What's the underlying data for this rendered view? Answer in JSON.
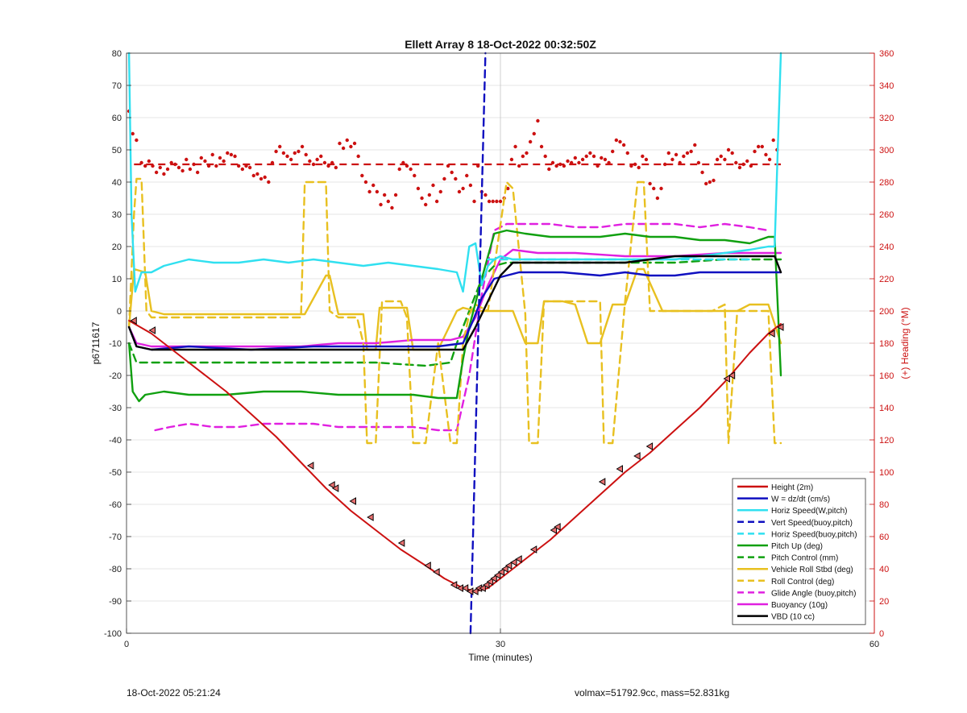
{
  "chart_data": {
    "type": "line",
    "title": "Ellett Array 8 18-Oct-2022 00:32:50Z",
    "xlabel": "Time (minutes)",
    "ylabel": "p6711617",
    "y2label": "(+) Heading (°M)",
    "xlim": [
      0,
      60
    ],
    "ylim": [
      -100,
      80
    ],
    "y2lim": [
      0,
      360
    ],
    "xticks": [
      "0",
      "30",
      "60"
    ],
    "yticks": [
      "-100",
      "-90",
      "-80",
      "-70",
      "-60",
      "-50",
      "-40",
      "-30",
      "-20",
      "-10",
      "0",
      "10",
      "20",
      "30",
      "40",
      "50",
      "60",
      "70",
      "80"
    ],
    "y2ticks": [
      "0",
      "20",
      "40",
      "60",
      "80",
      "100",
      "120",
      "140",
      "160",
      "180",
      "200",
      "220",
      "240",
      "260",
      "280",
      "300",
      "320",
      "340",
      "360"
    ],
    "grid": true,
    "legend_position": "bottom-right",
    "colors": {
      "red": "#cc1111",
      "blue": "#1010c0",
      "cyan": "#30e0f0",
      "green": "#10a010",
      "yellow": "#e8c020",
      "magenta": "#e020e0",
      "black": "#000000",
      "heading_axis": "#cc1111"
    },
    "series": [
      {
        "name": "Height (2m)",
        "color": "#cc1111",
        "style": "solid",
        "x": [
          0.2,
          2,
          5,
          8,
          10,
          12,
          14,
          16,
          18,
          20,
          22,
          24,
          25.5,
          27,
          28,
          29,
          30,
          31,
          32,
          34,
          36,
          38,
          40,
          42,
          44,
          46,
          48,
          50,
          51.5,
          52.5
        ],
        "y": [
          -3,
          -7,
          -16,
          -25,
          -32,
          -39,
          -47,
          -55,
          -62,
          -68,
          -74,
          -79,
          -83,
          -86,
          -87,
          -86,
          -83,
          -80,
          -77,
          -71,
          -64,
          -57,
          -50,
          -44,
          -37,
          -30,
          -22,
          -13,
          -7,
          -4
        ]
      },
      {
        "name": "W = dz/dt (cm/s)",
        "color": "#1010c0",
        "style": "solid",
        "x": [
          0.2,
          0.8,
          2,
          5,
          10,
          15,
          20,
          25,
          27,
          27.8,
          28.5,
          29.5,
          30.5,
          31.5,
          33,
          35,
          38,
          40,
          42,
          44,
          46,
          48,
          50,
          52,
          52.5
        ],
        "y": [
          -5,
          -11,
          -12,
          -11,
          -12,
          -11,
          -11,
          -11,
          -10,
          -3,
          4,
          10,
          11,
          12,
          12,
          12,
          11,
          12,
          11,
          11,
          12,
          12,
          12,
          12,
          12
        ]
      },
      {
        "name": "Horiz Speed(W,pitch)",
        "color": "#30e0f0",
        "style": "solid",
        "x": [
          0.2,
          0.4,
          0.7,
          1.2,
          2,
          3,
          5,
          7,
          9,
          11,
          13,
          15,
          17,
          19,
          21,
          23,
          25,
          26.5,
          27,
          27.5,
          28,
          28.5,
          29,
          29.5,
          30,
          31,
          33,
          35,
          38,
          40,
          42,
          44,
          46,
          48,
          50,
          51.5,
          52,
          52.5
        ],
        "y": [
          80,
          30,
          6,
          12,
          12,
          14,
          16,
          15,
          15,
          16,
          15,
          16,
          15,
          14,
          15,
          14,
          13,
          12,
          6,
          20,
          21,
          8,
          14,
          16,
          17,
          16,
          16,
          16,
          16,
          16,
          16,
          16,
          17,
          18,
          19,
          20,
          20,
          80
        ]
      },
      {
        "name": "Vert Speed(buoy,pitch)",
        "color": "#1010c0",
        "style": "dashed",
        "x": [
          27.6,
          28.8
        ],
        "y": [
          -100,
          80
        ]
      },
      {
        "name": "Horiz Speed(buoy,pitch)",
        "color": "#30e0f0",
        "style": "dashed",
        "x": [
          29,
          31,
          35,
          40,
          45,
          50
        ],
        "y": [
          16,
          16,
          16,
          16,
          16,
          16
        ]
      },
      {
        "name": "Pitch Up (deg)",
        "color": "#10a010",
        "style": "solid",
        "x": [
          0.2,
          0.5,
          1,
          1.5,
          3,
          5,
          8,
          11,
          14,
          17,
          20,
          23,
          25,
          26.5,
          27,
          27.5,
          28.5,
          29.5,
          30.5,
          32,
          34,
          36,
          38,
          40,
          42,
          44,
          46,
          48,
          50,
          51.5,
          52,
          52.5
        ],
        "y": [
          -10,
          -25,
          -28,
          -26,
          -25,
          -26,
          -26,
          -25,
          -25,
          -26,
          -26,
          -26,
          -27,
          -27,
          -15,
          -5,
          10,
          24,
          25,
          24,
          23,
          23,
          23,
          24,
          23,
          23,
          22,
          22,
          21,
          23,
          23,
          -20
        ]
      },
      {
        "name": "Pitch Control (mm)",
        "color": "#10a010",
        "style": "dashed",
        "x": [
          0.2,
          0.8,
          5,
          10,
          15,
          20,
          24,
          26,
          26.5,
          27,
          27.5,
          28.5,
          29.5,
          30.5,
          32,
          36,
          40,
          44,
          48,
          52.5
        ],
        "y": [
          -10,
          -16,
          -16,
          -16,
          -16,
          -16,
          -17,
          -16,
          -10,
          -5,
          0,
          10,
          14,
          15,
          15,
          15,
          15,
          15,
          16,
          16
        ]
      },
      {
        "name": "Vehicle Roll Stbd (deg)",
        "color": "#e8c020",
        "style": "solid",
        "x": [
          0.2,
          0.6,
          1.5,
          2,
          3,
          5,
          8,
          10,
          12,
          14,
          14.3,
          16,
          16.3,
          17,
          17.5,
          18.5,
          19,
          19.3,
          20,
          20.3,
          21,
          22,
          22.5,
          23,
          23.3,
          24,
          25,
          26.5,
          27,
          28,
          29,
          30.5,
          31,
          32,
          33,
          33.5,
          35,
          36,
          37,
          37.5,
          38,
          39,
          40,
          41,
          41.5,
          43,
          47,
          48,
          49,
          50,
          51.5,
          52.5
        ],
        "y": [
          -5,
          13,
          12,
          0,
          -1,
          -1,
          -1,
          -1,
          -1,
          -1,
          -1,
          11,
          11,
          -1,
          -1,
          -1,
          -1,
          -12,
          -12,
          1,
          1,
          1,
          1,
          -12,
          -12,
          -12,
          -12,
          0,
          1,
          0,
          0,
          0,
          0,
          -10,
          -10,
          3,
          3,
          2,
          -10,
          -10,
          -10,
          2,
          2,
          13,
          13,
          0,
          0,
          0,
          0,
          2,
          2,
          -10
        ]
      },
      {
        "name": "Roll Control (deg)",
        "color": "#e8c020",
        "style": "dashed",
        "x": [
          0.2,
          0.6,
          0.8,
          1.2,
          1.6,
          2,
          5,
          10,
          14,
          14.3,
          16,
          16.3,
          17,
          18.5,
          19,
          19.3,
          20,
          20.5,
          22,
          22.5,
          23,
          24,
          25,
          26,
          26.5,
          27,
          27.5,
          28,
          29,
          30.5,
          31,
          32,
          32.3,
          33,
          33.5,
          35,
          38,
          38.3,
          39,
          40,
          41,
          41.5,
          42,
          44,
          46,
          47,
          48,
          48.3,
          49,
          50,
          51.5,
          52,
          52.5
        ],
        "y": [
          -5,
          30,
          41,
          41,
          0,
          -2,
          -2,
          -2,
          -2,
          40,
          40,
          0,
          -2,
          -2,
          -10,
          -41,
          -41,
          3,
          3,
          -2,
          -41,
          -41,
          -10,
          -41,
          -41,
          -10,
          -1,
          2,
          0,
          40,
          38,
          -1,
          -41,
          -41,
          3,
          3,
          3,
          -41,
          -41,
          3,
          40,
          40,
          0,
          0,
          0,
          0,
          2,
          -41,
          0,
          0,
          0,
          -41,
          -41
        ]
      },
      {
        "name": "Glide Angle (buoy,pitch)",
        "color": "#e020e0",
        "style": "dashed",
        "x": [
          2.3,
          3.5,
          5,
          7,
          9,
          11,
          13,
          15,
          17,
          19,
          21,
          23,
          25,
          26.5,
          27.5,
          28.5,
          29.5,
          30.5,
          32,
          34,
          36,
          38,
          40,
          42,
          44,
          46,
          48,
          50,
          51.5
        ],
        "y": [
          -37,
          -36,
          -35,
          -36,
          -36,
          -35,
          -35,
          -35,
          -36,
          -36,
          -36,
          -36,
          -37,
          -37,
          -20,
          5,
          25,
          27,
          27,
          27,
          26,
          26,
          27,
          27,
          27,
          26,
          27,
          26,
          25
        ]
      },
      {
        "name": "Buoyancy (10g)",
        "color": "#e020e0",
        "style": "solid",
        "x": [
          0.2,
          0.8,
          2,
          5,
          8,
          11,
          14,
          17,
          20,
          23,
          26,
          27,
          28,
          29,
          30,
          31,
          33,
          36,
          40,
          44,
          48,
          50,
          52.5
        ],
        "y": [
          -5,
          -10,
          -11,
          -11,
          -11,
          -11,
          -11,
          -10,
          -10,
          -9,
          -9,
          -8,
          -2,
          8,
          16,
          19,
          18,
          18,
          17,
          17,
          18,
          18,
          18
        ]
      },
      {
        "name": "VBD (10 cc)",
        "color": "#000000",
        "style": "solid",
        "x": [
          0.2,
          0.8,
          2,
          5,
          10,
          15,
          20,
          25,
          27,
          28,
          29,
          30,
          31,
          33,
          35,
          38,
          40,
          42,
          44,
          46,
          48,
          50,
          52,
          52.5
        ],
        "y": [
          -5,
          -11,
          -12,
          -12,
          -12,
          -12,
          -12,
          -12,
          -12,
          -5,
          3,
          11,
          15,
          15,
          15,
          15,
          15,
          16,
          17,
          17,
          17,
          17,
          17,
          12
        ]
      }
    ],
    "heading_mean": {
      "color": "#cc1111",
      "style": "dashed",
      "y2": 291
    },
    "heading_points": {
      "color": "#cc1111",
      "x": [
        0.2,
        0.5,
        0.8,
        1.2,
        1.5,
        1.8,
        2.1,
        2.4,
        2.7,
        3,
        3.3,
        3.6,
        3.9,
        4.2,
        4.5,
        4.8,
        5.1,
        5.4,
        5.7,
        6,
        6.3,
        6.6,
        6.9,
        7.2,
        7.5,
        7.8,
        8.1,
        8.4,
        8.7,
        9,
        9.3,
        9.6,
        9.9,
        10.2,
        10.5,
        10.8,
        11.1,
        11.4,
        11.7,
        12,
        12.3,
        12.6,
        12.9,
        13.2,
        13.5,
        13.8,
        14.1,
        14.4,
        14.7,
        15,
        15.3,
        15.6,
        15.9,
        16.2,
        16.5,
        16.8,
        17.1,
        17.4,
        17.7,
        18,
        18.3,
        18.6,
        18.9,
        19.2,
        19.5,
        19.8,
        20.1,
        20.4,
        20.7,
        21,
        21.3,
        21.6,
        21.9,
        22.2,
        22.5,
        22.8,
        23.1,
        23.4,
        23.7,
        24,
        24.3,
        24.6,
        24.9,
        25.2,
        25.5,
        25.8,
        26.1,
        26.4,
        26.7,
        27,
        27.3,
        27.6,
        27.9,
        28.2,
        28.5,
        28.8,
        29.1,
        29.4,
        29.7,
        30,
        30.3,
        30.6,
        30.9,
        31.2,
        31.5,
        31.8,
        32.1,
        32.4,
        32.7,
        33,
        33.3,
        33.6,
        33.9,
        34.2,
        34.5,
        34.8,
        35.1,
        35.4,
        35.7,
        36,
        36.3,
        36.6,
        36.9,
        37.2,
        37.5,
        37.8,
        38.1,
        38.4,
        38.7,
        39,
        39.3,
        39.6,
        39.9,
        40.2,
        40.5,
        40.8,
        41.1,
        41.4,
        41.7,
        42,
        42.3,
        42.6,
        42.9,
        43.2,
        43.5,
        43.8,
        44.1,
        44.4,
        44.7,
        45,
        45.3,
        45.6,
        45.9,
        46.2,
        46.5,
        46.8,
        47.1,
        47.4,
        47.7,
        48,
        48.3,
        48.6,
        48.9,
        49.2,
        49.5,
        49.8,
        50.1,
        50.4,
        50.7,
        51,
        51.3,
        51.6,
        51.9,
        52.2
      ],
      "y2": [
        324,
        310,
        306,
        292,
        290,
        293,
        290,
        286,
        289,
        285,
        288,
        292,
        291,
        289,
        287,
        294,
        288,
        291,
        286,
        295,
        293,
        290,
        297,
        290,
        295,
        293,
        298,
        297,
        296,
        290,
        288,
        290,
        289,
        284,
        285,
        282,
        283,
        280,
        292,
        299,
        302,
        298,
        296,
        294,
        298,
        299,
        302,
        297,
        293,
        291,
        294,
        296,
        292,
        290,
        292,
        289,
        304,
        301,
        306,
        302,
        304,
        296,
        284,
        280,
        274,
        278,
        274,
        266,
        272,
        268,
        264,
        272,
        288,
        292,
        290,
        288,
        284,
        276,
        270,
        266,
        272,
        278,
        268,
        274,
        282,
        290,
        286,
        282,
        274,
        276,
        284,
        278,
        268,
        290,
        274,
        272,
        268,
        268,
        268,
        268,
        270,
        276,
        294,
        302,
        290,
        296,
        298,
        305,
        310,
        318,
        302,
        296,
        288,
        292,
        290,
        291,
        290,
        293,
        292,
        295,
        292,
        294,
        296,
        298,
        296,
        290,
        295,
        294,
        292,
        299,
        306,
        305,
        303,
        298,
        290,
        291,
        289,
        296,
        294,
        279,
        276,
        270,
        276,
        291,
        298,
        294,
        297,
        292,
        296,
        298,
        299,
        303,
        292,
        286,
        279,
        280,
        281,
        294,
        296,
        294,
        300,
        298,
        292,
        289,
        291,
        293,
        290,
        299,
        302,
        302,
        297,
        294,
        306,
        300,
        290
      ]
    },
    "markers": {
      "color": "#000000",
      "fill": "#e87070",
      "x": [
        0.6,
        2.1,
        14.8,
        16.5,
        16.8,
        18.2,
        19.6,
        22.1,
        24.2,
        24.9,
        26.3,
        26.8,
        27.2,
        27.6,
        28,
        28.3,
        28.6,
        28.9,
        29.2,
        29.5,
        29.8,
        30.1,
        30.4,
        30.7,
        31.1,
        31.5,
        32.7,
        34.3,
        34.6,
        38.2,
        39.6,
        41,
        42,
        48.2,
        48.6,
        51.8,
        52.5
      ],
      "y": [
        -3,
        -6,
        -48,
        -54,
        -55,
        -59,
        -64,
        -72,
        -79,
        -81,
        -85,
        -86,
        -86,
        -87,
        -87,
        -86,
        -86,
        -85,
        -84,
        -83,
        -82,
        -81,
        -80,
        -79,
        -78,
        -77,
        -74,
        -68,
        -67,
        -53,
        -49,
        -45,
        -42,
        -21,
        -20,
        -7,
        -5
      ]
    },
    "vertical_line_x": 30
  },
  "footer": {
    "timestamp": "18-Oct-2022 05:21:24",
    "info": "volmax=51792.9cc, mass=52.831kg"
  }
}
